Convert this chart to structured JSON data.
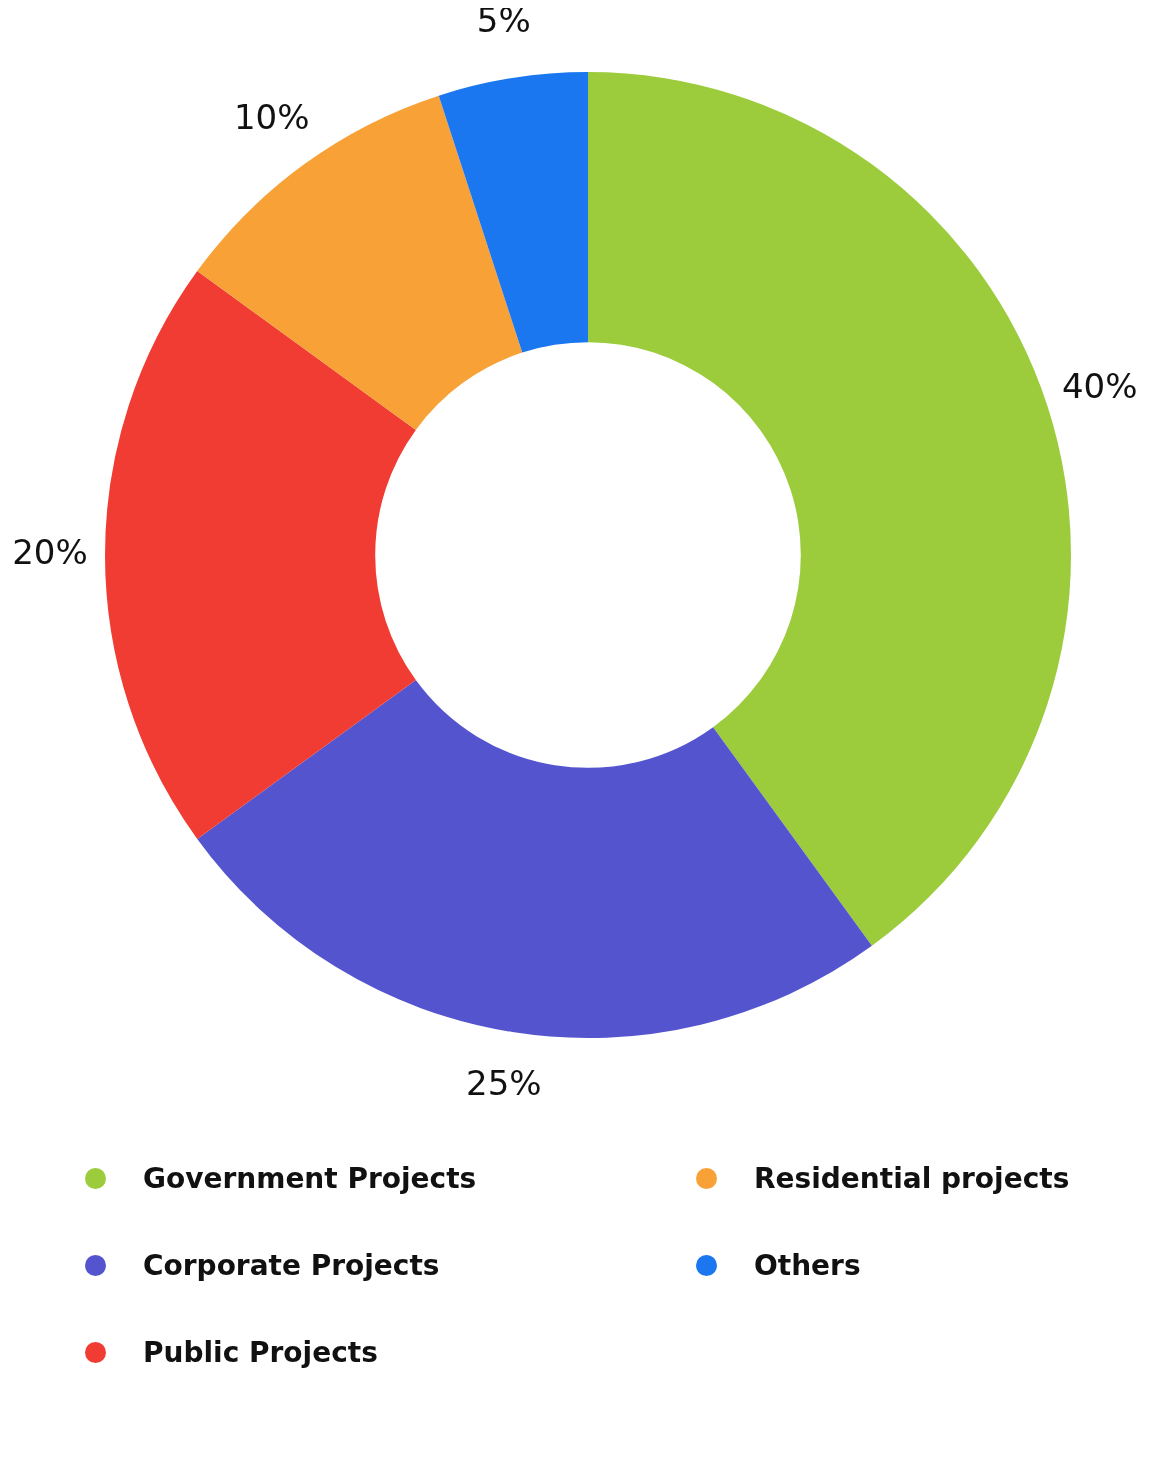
{
  "chart_data": {
    "type": "donut",
    "categories": [
      "Government Projects",
      "Corporate Projects",
      "Public Projects",
      "Residential projects",
      "Others"
    ],
    "values": [
      40,
      25,
      20,
      10,
      5
    ],
    "colors": [
      "#9ccc3c",
      "#5454cf",
      "#f03c32",
      "#f8a136",
      "#1a77ef"
    ],
    "value_labels": [
      "40%",
      "25%",
      "20%",
      "10%",
      "5%"
    ],
    "legend": "bottom"
  }
}
